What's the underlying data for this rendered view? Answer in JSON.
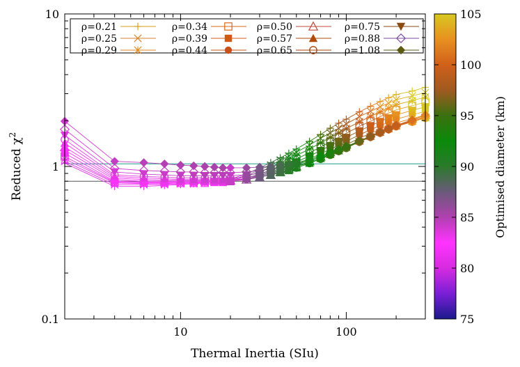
{
  "chart_data": {
    "type": "scatter",
    "x_scale": "log",
    "y_scale": "log",
    "xlabel": "Thermal Inertia (SIu)",
    "ylabel": "Reduced χ",
    "ylabel_sup": "2",
    "xlim": [
      2,
      300
    ],
    "ylim": [
      0.1,
      10
    ],
    "x_ticks": [
      {
        "value": 10,
        "label": "10"
      },
      {
        "value": 100,
        "label": "100"
      }
    ],
    "y_ticks": [
      {
        "value": 0.1,
        "label": "0.1"
      },
      {
        "value": 1,
        "label": "1"
      },
      {
        "value": 10,
        "label": "10"
      }
    ],
    "reference_lines": [
      {
        "y": 1.04,
        "color": "#1f9e89"
      },
      {
        "y": 0.8,
        "color": "#555555"
      }
    ],
    "colorbar": {
      "label": "Optimised diameter (km)",
      "min": 75,
      "max": 105,
      "ticks": [
        "75",
        "80",
        "85",
        "90",
        "95",
        "100",
        "105"
      ],
      "stops": [
        "#1a1a8c",
        "#7a1fd6",
        "#d62be0",
        "#ff33ff",
        "#b040b0",
        "#6a5a7a",
        "#2a7a2a",
        "#0a8a0a",
        "#3a7010",
        "#a05a20",
        "#d0601a",
        "#e89020",
        "#d8c820"
      ]
    },
    "x": [
      2,
      4,
      6,
      8,
      10,
      12,
      14,
      16,
      18,
      20,
      25,
      30,
      35,
      40,
      45,
      50,
      60,
      70,
      80,
      90,
      100,
      120,
      140,
      160,
      180,
      200,
      250,
      300
    ],
    "legend": [
      {
        "label": "ρ=0.21",
        "marker": "plus",
        "color": "#d4a017"
      },
      {
        "label": "ρ=0.25",
        "marker": "x",
        "color": "#d9822b"
      },
      {
        "label": "ρ=0.29",
        "marker": "star",
        "color": "#e08a20"
      },
      {
        "label": "ρ=0.34",
        "marker": "square-open",
        "color": "#d9651a"
      },
      {
        "label": "ρ=0.39",
        "marker": "square",
        "color": "#d05a14"
      },
      {
        "label": "ρ=0.44",
        "marker": "circle",
        "color": "#c8501a"
      },
      {
        "label": "ρ=0.50",
        "marker": "triangle-open",
        "color": "#c04a3a"
      },
      {
        "label": "ρ=0.57",
        "marker": "triangle",
        "color": "#b04a0a"
      },
      {
        "label": "ρ=0.65",
        "marker": "circle-open",
        "color": "#a8420a"
      },
      {
        "label": "ρ=0.75",
        "marker": "triangle-down",
        "color": "#8a4a10"
      },
      {
        "label": "ρ=0.88",
        "marker": "diamond-open",
        "color": "#7a4aa0"
      },
      {
        "label": "ρ=1.08",
        "marker": "diamond",
        "color": "#5a5a10"
      }
    ],
    "series": [
      {
        "label": "ρ=0.21",
        "marker": "plus",
        "values": [
          1.05,
          0.74,
          0.74,
          0.75,
          0.76,
          0.77,
          0.78,
          0.79,
          0.81,
          0.83,
          0.89,
          0.98,
          1.06,
          1.14,
          1.22,
          1.3,
          1.46,
          1.62,
          1.78,
          1.92,
          2.04,
          2.28,
          2.48,
          2.66,
          2.82,
          2.96,
          3.12,
          3.3
        ]
      },
      {
        "label": "ρ=0.25",
        "marker": "x",
        "values": [
          1.08,
          0.76,
          0.76,
          0.76,
          0.77,
          0.77,
          0.78,
          0.79,
          0.8,
          0.82,
          0.87,
          0.95,
          1.02,
          1.1,
          1.17,
          1.24,
          1.38,
          1.53,
          1.66,
          1.78,
          1.9,
          2.12,
          2.3,
          2.46,
          2.6,
          2.74,
          2.9,
          3.05
        ]
      },
      {
        "label": "ρ=0.29",
        "marker": "star",
        "values": [
          1.12,
          0.78,
          0.77,
          0.77,
          0.78,
          0.78,
          0.79,
          0.79,
          0.8,
          0.81,
          0.86,
          0.92,
          0.99,
          1.06,
          1.12,
          1.18,
          1.3,
          1.43,
          1.55,
          1.66,
          1.77,
          1.96,
          2.13,
          2.28,
          2.41,
          2.54,
          2.7,
          2.85
        ]
      },
      {
        "label": "ρ=0.34",
        "marker": "square-open",
        "values": [
          1.16,
          0.79,
          0.78,
          0.78,
          0.78,
          0.78,
          0.78,
          0.79,
          0.79,
          0.8,
          0.84,
          0.89,
          0.95,
          1.01,
          1.06,
          1.12,
          1.23,
          1.34,
          1.45,
          1.55,
          1.65,
          1.83,
          1.98,
          2.12,
          2.24,
          2.35,
          2.5,
          2.64
        ]
      },
      {
        "label": "ρ=0.39",
        "marker": "square",
        "values": [
          1.22,
          0.8,
          0.79,
          0.79,
          0.79,
          0.79,
          0.79,
          0.79,
          0.79,
          0.8,
          0.83,
          0.87,
          0.92,
          0.97,
          1.02,
          1.07,
          1.17,
          1.27,
          1.37,
          1.46,
          1.55,
          1.71,
          1.85,
          1.97,
          2.08,
          2.18,
          2.33,
          2.46
        ]
      },
      {
        "label": "ρ=0.44",
        "marker": "circle",
        "values": [
          1.28,
          0.82,
          0.8,
          0.8,
          0.8,
          0.8,
          0.8,
          0.8,
          0.8,
          0.8,
          0.82,
          0.86,
          0.9,
          0.94,
          0.98,
          1.03,
          1.12,
          1.21,
          1.3,
          1.38,
          1.46,
          1.61,
          1.74,
          1.85,
          1.95,
          2.04,
          2.18,
          2.3
        ]
      },
      {
        "label": "ρ=0.50",
        "marker": "triangle-open",
        "values": [
          1.34,
          0.84,
          0.82,
          0.81,
          0.81,
          0.81,
          0.81,
          0.81,
          0.81,
          0.81,
          0.82,
          0.85,
          0.88,
          0.92,
          0.96,
          1.0,
          1.08,
          1.16,
          1.24,
          1.32,
          1.39,
          1.53,
          1.65,
          1.75,
          1.85,
          1.93,
          2.06,
          2.18
        ]
      },
      {
        "label": "ρ=0.57",
        "marker": "triangle",
        "values": [
          1.42,
          0.86,
          0.84,
          0.83,
          0.82,
          0.82,
          0.82,
          0.82,
          0.82,
          0.82,
          0.83,
          0.85,
          0.88,
          0.91,
          0.94,
          0.98,
          1.05,
          1.13,
          1.2,
          1.27,
          1.34,
          1.47,
          1.58,
          1.68,
          1.77,
          1.85,
          1.98,
          2.1
        ]
      },
      {
        "label": "ρ=0.65",
        "marker": "circle-open",
        "values": [
          1.5,
          0.88,
          0.86,
          0.85,
          0.84,
          0.84,
          0.84,
          0.84,
          0.84,
          0.84,
          0.85,
          0.87,
          0.89,
          0.92,
          0.95,
          0.98,
          1.05,
          1.12,
          1.19,
          1.26,
          1.32,
          1.45,
          1.56,
          1.66,
          1.75,
          1.83,
          1.96,
          2.08
        ]
      },
      {
        "label": "ρ=0.75",
        "marker": "triangle-down",
        "values": [
          1.6,
          0.92,
          0.89,
          0.88,
          0.87,
          0.87,
          0.87,
          0.87,
          0.87,
          0.87,
          0.88,
          0.9,
          0.92,
          0.94,
          0.97,
          1.0,
          1.06,
          1.13,
          1.2,
          1.26,
          1.33,
          1.45,
          1.56,
          1.66,
          1.75,
          1.83,
          1.97,
          2.1
        ]
      },
      {
        "label": "ρ=0.88",
        "marker": "diamond-open",
        "values": [
          1.75,
          0.97,
          0.94,
          0.93,
          0.92,
          0.92,
          0.91,
          0.91,
          0.91,
          0.91,
          0.92,
          0.94,
          0.96,
          0.98,
          1.0,
          1.03,
          1.09,
          1.15,
          1.22,
          1.28,
          1.34,
          1.46,
          1.57,
          1.67,
          1.76,
          1.85,
          2.0,
          2.14
        ]
      },
      {
        "label": "ρ=1.08",
        "marker": "diamond",
        "values": [
          1.98,
          1.08,
          1.06,
          1.04,
          1.02,
          1.01,
          1.0,
          0.99,
          0.98,
          0.98,
          0.98,
          0.99,
          1.0,
          1.02,
          1.04,
          1.06,
          1.11,
          1.17,
          1.23,
          1.29,
          1.35,
          1.47,
          1.58,
          1.68,
          1.77,
          1.86,
          2.02,
          2.18
        ]
      }
    ]
  }
}
